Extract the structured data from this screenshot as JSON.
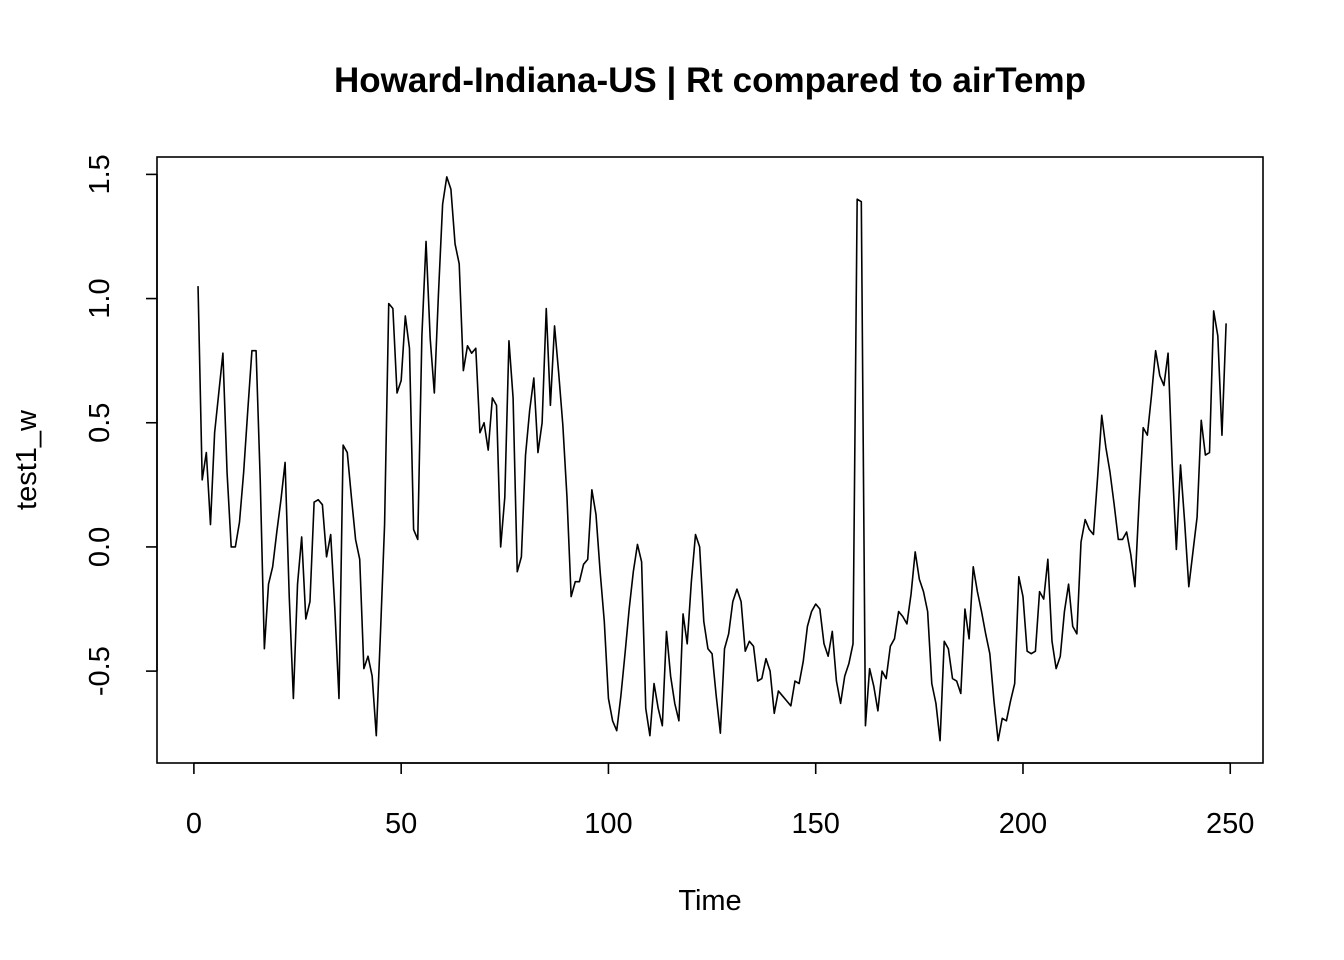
{
  "chart_data": {
    "type": "line",
    "title": "Howard-Indiana-US | Rt compared to airTemp",
    "xlabel": "Time",
    "ylabel": "test1_w",
    "xlim": [
      -8.9,
      257.9
    ],
    "ylim": [
      -0.87,
      1.57
    ],
    "x_ticks": [
      0,
      50,
      100,
      150,
      200,
      250
    ],
    "x_tick_labels": [
      "0",
      "50",
      "100",
      "150",
      "200",
      "250"
    ],
    "y_ticks": [
      -0.5,
      0.0,
      0.5,
      1.0,
      1.5
    ],
    "y_tick_labels": [
      "-0.5",
      "0.0",
      "0.5",
      "1.0",
      "1.5"
    ],
    "grid": false,
    "legend": "none",
    "series": [
      {
        "color": "#000000",
        "x_start": 1,
        "x_step": 1,
        "values": [
          1.05,
          0.27,
          0.38,
          0.09,
          0.46,
          0.62,
          0.78,
          0.3,
          0.0,
          0.0,
          0.1,
          0.3,
          0.55,
          0.79,
          0.79,
          0.27,
          -0.41,
          -0.15,
          -0.08,
          0.06,
          0.19,
          0.34,
          -0.2,
          -0.61,
          -0.15,
          0.04,
          -0.29,
          -0.22,
          0.18,
          0.19,
          0.17,
          -0.04,
          0.05,
          -0.25,
          -0.61,
          0.41,
          0.38,
          0.2,
          0.03,
          -0.05,
          -0.49,
          -0.44,
          -0.52,
          -0.76,
          -0.35,
          0.09,
          0.98,
          0.96,
          0.62,
          0.67,
          0.93,
          0.8,
          0.07,
          0.03,
          0.85,
          1.23,
          0.84,
          0.62,
          1.02,
          1.38,
          1.49,
          1.44,
          1.22,
          1.14,
          0.71,
          0.81,
          0.78,
          0.8,
          0.46,
          0.5,
          0.39,
          0.6,
          0.57,
          0.0,
          0.2,
          0.83,
          0.6,
          -0.1,
          -0.04,
          0.37,
          0.55,
          0.68,
          0.38,
          0.5,
          0.96,
          0.57,
          0.89,
          0.7,
          0.49,
          0.2,
          -0.2,
          -0.14,
          -0.14,
          -0.07,
          -0.05,
          0.23,
          0.13,
          -0.1,
          -0.3,
          -0.61,
          -0.7,
          -0.74,
          -0.6,
          -0.43,
          -0.25,
          -0.1,
          0.01,
          -0.06,
          -0.65,
          -0.76,
          -0.55,
          -0.65,
          -0.72,
          -0.34,
          -0.52,
          -0.63,
          -0.7,
          -0.27,
          -0.39,
          -0.14,
          0.05,
          0.0,
          -0.3,
          -0.41,
          -0.43,
          -0.6,
          -0.75,
          -0.41,
          -0.35,
          -0.22,
          -0.17,
          -0.22,
          -0.42,
          -0.38,
          -0.4,
          -0.54,
          -0.53,
          -0.45,
          -0.5,
          -0.67,
          -0.58,
          -0.6,
          -0.62,
          -0.64,
          -0.54,
          -0.55,
          -0.46,
          -0.32,
          -0.26,
          -0.23,
          -0.25,
          -0.39,
          -0.44,
          -0.34,
          -0.54,
          -0.63,
          -0.52,
          -0.47,
          -0.39,
          1.4,
          1.39,
          -0.72,
          -0.49,
          -0.56,
          -0.66,
          -0.5,
          -0.53,
          -0.4,
          -0.37,
          -0.26,
          -0.28,
          -0.31,
          -0.19,
          -0.02,
          -0.13,
          -0.18,
          -0.26,
          -0.55,
          -0.63,
          -0.78,
          -0.38,
          -0.41,
          -0.53,
          -0.54,
          -0.59,
          -0.25,
          -0.37,
          -0.08,
          -0.18,
          -0.26,
          -0.35,
          -0.43,
          -0.62,
          -0.78,
          -0.69,
          -0.7,
          -0.62,
          -0.55,
          -0.12,
          -0.2,
          -0.42,
          -0.43,
          -0.42,
          -0.18,
          -0.21,
          -0.05,
          -0.38,
          -0.49,
          -0.44,
          -0.26,
          -0.15,
          -0.32,
          -0.35,
          0.02,
          0.11,
          0.07,
          0.05,
          0.28,
          0.53,
          0.4,
          0.3,
          0.17,
          0.03,
          0.03,
          0.06,
          -0.03,
          -0.16,
          0.18,
          0.48,
          0.45,
          0.61,
          0.79,
          0.69,
          0.65,
          0.78,
          0.33,
          -0.01,
          0.33,
          0.1,
          -0.16,
          -0.02,
          0.12,
          0.51,
          0.37,
          0.38,
          0.95,
          0.85,
          0.45,
          0.9
        ]
      }
    ]
  }
}
